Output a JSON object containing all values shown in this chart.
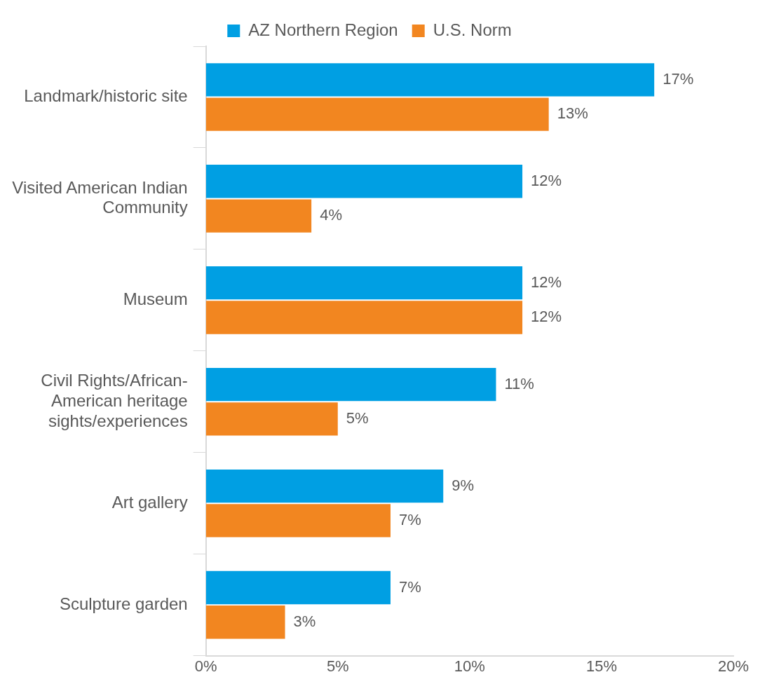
{
  "chart_data": {
    "type": "bar",
    "orientation": "horizontal",
    "categories": [
      "Landmark/historic site",
      "Visited American Indian Community",
      "Museum",
      "Civil Rights/African-American heritage sights/experiences",
      "Art gallery",
      "Sculpture garden"
    ],
    "series": [
      {
        "name": "AZ Northern Region",
        "color": "#009fe3",
        "values": [
          17,
          12,
          12,
          11,
          9,
          7
        ],
        "value_labels": [
          "17%",
          "12%",
          "12%",
          "11%",
          "9%",
          "7%"
        ]
      },
      {
        "name": "U.S. Norm",
        "color": "#f28620",
        "values": [
          13,
          4,
          12,
          5,
          7,
          3
        ],
        "value_labels": [
          "13%",
          "4%",
          "12%",
          "5%",
          "7%",
          "3%"
        ]
      }
    ],
    "xlim": [
      0,
      20
    ],
    "xticks": [
      {
        "value": 0,
        "label": "0%"
      },
      {
        "value": 5,
        "label": "5%"
      },
      {
        "value": 10,
        "label": "10%"
      },
      {
        "value": 15,
        "label": "15%"
      },
      {
        "value": 20,
        "label": "20%"
      }
    ],
    "grid": false,
    "legend": "top"
  }
}
